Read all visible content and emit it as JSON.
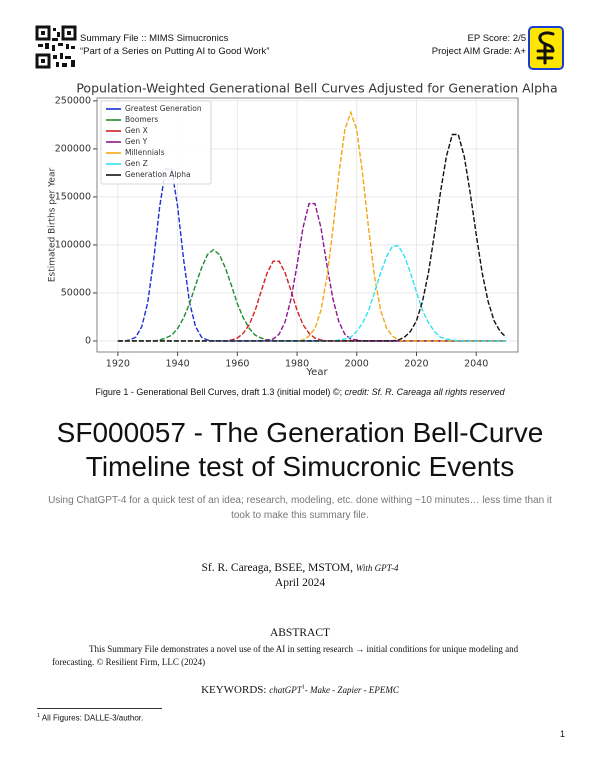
{
  "header": {
    "left_line1": "Summary File :: MIMS Simucronics",
    "left_line2": "“Part of a Series on Putting AI to Good Work”",
    "right_line1": "EP Score: 2/5",
    "right_line2": "Project AIM Grade: A+"
  },
  "chart_data": {
    "type": "line",
    "title": "Population-Weighted Generational Bell Curves Adjusted for Generation Alpha",
    "xlabel": "Year",
    "ylabel": "Estimated Births per Year",
    "x": [
      1920,
      1922,
      1924,
      1926,
      1928,
      1930,
      1932,
      1934,
      1936,
      1938,
      1940,
      1942,
      1944,
      1946,
      1948,
      1950,
      1952,
      1954,
      1956,
      1958,
      1960,
      1962,
      1964,
      1966,
      1968,
      1970,
      1972,
      1974,
      1976,
      1978,
      1980,
      1982,
      1984,
      1986,
      1988,
      1990,
      1992,
      1994,
      1996,
      1998,
      2000,
      2002,
      2004,
      2006,
      2008,
      2010,
      2012,
      2014,
      2016,
      2018,
      2020,
      2022,
      2024,
      2026,
      2028,
      2030,
      2032,
      2034,
      2036,
      2038,
      2040,
      2042,
      2044,
      2046,
      2048,
      2050
    ],
    "series": [
      {
        "name": "Greatest Generation",
        "color": "#1c2fd6",
        "values": [
          0,
          0,
          1000,
          4000,
          15000,
          40000,
          85000,
          140000,
          179000,
          179000,
          140000,
          85000,
          40000,
          15000,
          4000,
          1000,
          0,
          0,
          0,
          0,
          0,
          0,
          0,
          0,
          0,
          0,
          0,
          0,
          0,
          0,
          0,
          0,
          0,
          0,
          0,
          0,
          0,
          0,
          0,
          0,
          0,
          0,
          0,
          0,
          0,
          0,
          0,
          0,
          0,
          0,
          0,
          0,
          0,
          0,
          0,
          0,
          0,
          0,
          0,
          0,
          0,
          0,
          0,
          0,
          0,
          0
        ]
      },
      {
        "name": "Boomers",
        "color": "#1e8c2a",
        "values": [
          0,
          0,
          0,
          0,
          0,
          0,
          0,
          1000,
          3000,
          6000,
          13000,
          24000,
          39000,
          58000,
          76000,
          90000,
          95000,
          90000,
          76000,
          58000,
          39000,
          24000,
          13000,
          6000,
          3000,
          1000,
          0,
          0,
          0,
          0,
          0,
          0,
          0,
          0,
          0,
          0,
          0,
          0,
          0,
          0,
          0,
          0,
          0,
          0,
          0,
          0,
          0,
          0,
          0,
          0,
          0,
          0,
          0,
          0,
          0,
          0,
          0,
          0,
          0,
          0,
          0,
          0,
          0,
          0,
          0,
          0
        ]
      },
      {
        "name": "Gen X",
        "color": "#d42020",
        "values": [
          0,
          0,
          0,
          0,
          0,
          0,
          0,
          0,
          0,
          0,
          0,
          0,
          0,
          0,
          0,
          0,
          0,
          0,
          0,
          1000,
          3000,
          8000,
          17000,
          32000,
          52000,
          71000,
          83000,
          83000,
          71000,
          52000,
          32000,
          17000,
          8000,
          3000,
          1000,
          0,
          0,
          0,
          0,
          0,
          0,
          0,
          0,
          0,
          0,
          0,
          0,
          0,
          0,
          0,
          0,
          0,
          0,
          0,
          0,
          0,
          0,
          0,
          0,
          0,
          0,
          0,
          0,
          0,
          0,
          0
        ]
      },
      {
        "name": "Gen Y",
        "color": "#8a1a8e",
        "values": [
          0,
          0,
          0,
          0,
          0,
          0,
          0,
          0,
          0,
          0,
          0,
          0,
          0,
          0,
          0,
          0,
          0,
          0,
          0,
          0,
          0,
          0,
          0,
          0,
          0,
          1000,
          2000,
          7000,
          20000,
          44000,
          79000,
          118000,
          143000,
          143000,
          118000,
          79000,
          44000,
          20000,
          7000,
          2000,
          1000,
          0,
          0,
          0,
          0,
          0,
          0,
          0,
          0,
          0,
          0,
          0,
          0,
          0,
          0,
          0,
          0,
          0,
          0,
          0,
          0,
          0,
          0,
          0,
          0,
          0
        ]
      },
      {
        "name": "Millennials",
        "color": "#f2a813",
        "values": [
          0,
          0,
          0,
          0,
          0,
          0,
          0,
          0,
          0,
          0,
          0,
          0,
          0,
          0,
          0,
          0,
          0,
          0,
          0,
          0,
          0,
          0,
          0,
          0,
          0,
          0,
          0,
          0,
          0,
          0,
          0,
          1000,
          5000,
          13000,
          32000,
          66000,
          116000,
          173000,
          220000,
          238000,
          220000,
          173000,
          116000,
          66000,
          32000,
          13000,
          5000,
          1000,
          0,
          0,
          0,
          0,
          0,
          0,
          0,
          0,
          0,
          0,
          0,
          0,
          0,
          0,
          0,
          0,
          0,
          0
        ]
      },
      {
        "name": "Gen Z",
        "color": "#2fe3ee",
        "values": [
          0,
          0,
          0,
          0,
          0,
          0,
          0,
          0,
          0,
          0,
          0,
          0,
          0,
          0,
          0,
          0,
          0,
          0,
          0,
          0,
          0,
          0,
          0,
          0,
          0,
          0,
          0,
          0,
          0,
          0,
          0,
          0,
          0,
          0,
          0,
          0,
          0,
          1000,
          2000,
          4000,
          10000,
          19000,
          32000,
          51000,
          71000,
          88000,
          99000,
          99000,
          88000,
          71000,
          51000,
          32000,
          19000,
          10000,
          4000,
          2000,
          1000,
          0,
          0,
          0,
          0,
          0,
          0,
          0,
          0,
          0
        ]
      },
      {
        "name": "Generation Alpha",
        "color": "#111111",
        "values": [
          0,
          0,
          0,
          0,
          0,
          0,
          0,
          0,
          0,
          0,
          0,
          0,
          0,
          0,
          0,
          0,
          0,
          0,
          0,
          0,
          0,
          0,
          0,
          0,
          0,
          0,
          0,
          0,
          0,
          0,
          0,
          0,
          0,
          0,
          0,
          0,
          0,
          0,
          0,
          0,
          0,
          0,
          0,
          0,
          0,
          0,
          0,
          1000,
          4000,
          10000,
          21000,
          41000,
          71000,
          111000,
          154000,
          192000,
          215000,
          215000,
          192000,
          154000,
          111000,
          71000,
          41000,
          21000,
          10000,
          4000
        ]
      }
    ],
    "xlim": [
      1913,
      2054
    ],
    "ylim": [
      -11500,
      253000
    ],
    "xticks": [
      1920,
      1940,
      1960,
      1980,
      2000,
      2020,
      2040
    ],
    "yticks": [
      0,
      50000,
      100000,
      150000,
      200000,
      250000
    ],
    "grid": true,
    "legend": "upper-left"
  },
  "caption": {
    "text": "Figure 1 - Generational Bell Curves, draft 1.3 (initial model) ©; ",
    "credit": "credit: Sf. R. Careaga all rights reserved"
  },
  "title": "SF000057 - The Generation Bell-Curve Timeline test of Simucronic Events",
  "subtitle": "Using ChatGPT-4 for a quick test of an idea; research, modeling, etc. done withing ~10 minutes… less time than it took to make this summary file.",
  "authors": {
    "names": "Sf. R. Careaga, BSEE, MSTOM, ",
    "note": "With GPT-4"
  },
  "date": "April 2024",
  "abstract": {
    "heading": "ABSTRACT",
    "text": "This Summary File demonstrates a novel use of the AI in setting research → initial conditions for unique modeling and forecasting. © Resilient Firm, LLC (2024)"
  },
  "keywords": {
    "label": "KEYWORDS: ",
    "first": "chatGPT",
    "footnote_ref": "1",
    "rest": "-  Make - Zapier - EPEMC"
  },
  "footnote": {
    "marker": "1",
    "text": " All Figures: DALLE-3/author."
  },
  "page_number": 1
}
